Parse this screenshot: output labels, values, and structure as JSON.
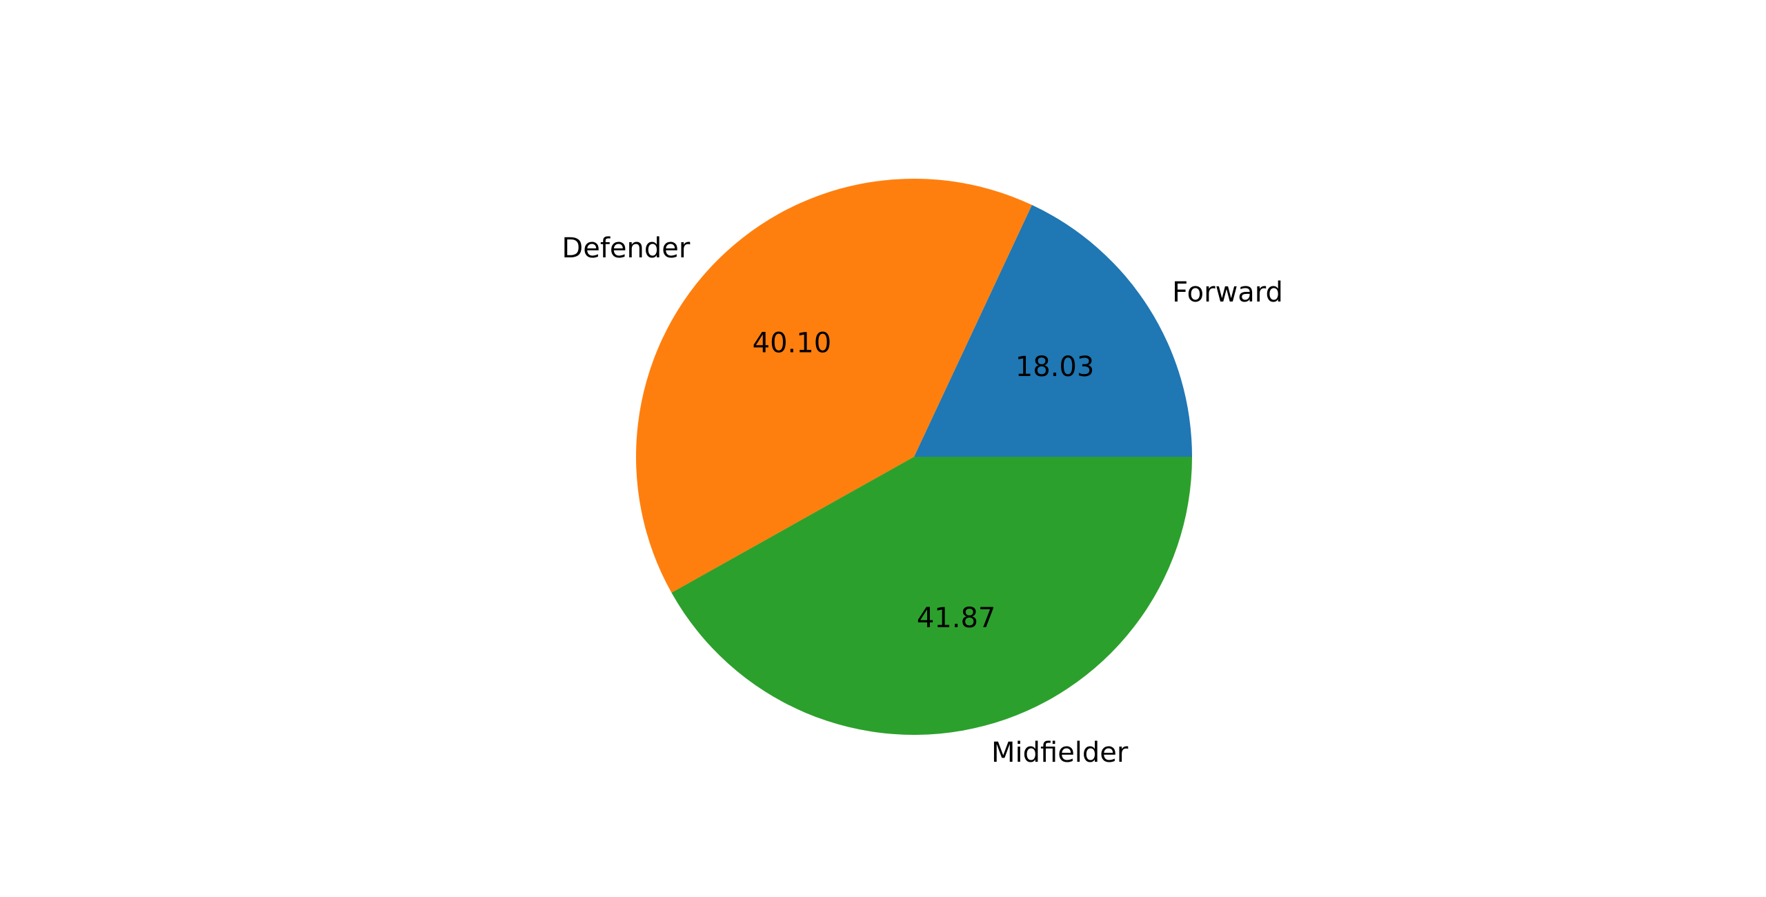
{
  "chart_data": {
    "type": "pie",
    "title": "",
    "categories": [
      "Forward",
      "Defender",
      "Midfielder"
    ],
    "values": [
      18.03,
      40.1,
      41.87
    ],
    "value_labels": [
      "18.03",
      "40.10",
      "41.87"
    ],
    "colors": [
      "#1f77b4",
      "#ff7f0e",
      "#2ca02c"
    ],
    "start_angle_deg": 0,
    "direction": "counterclockwise",
    "legend": "none"
  }
}
